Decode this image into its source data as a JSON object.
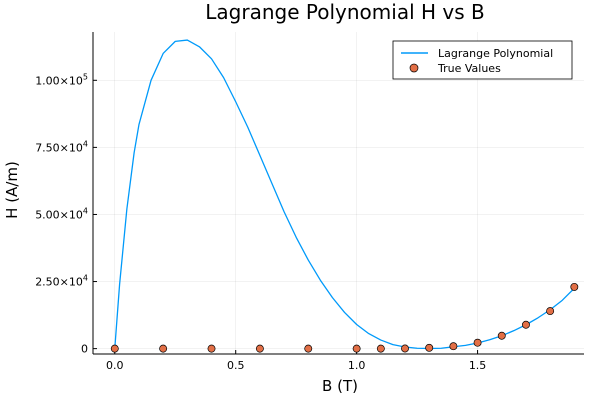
{
  "chart_data": {
    "type": "line",
    "title": "Lagrange Polynomial H vs B",
    "xlabel": "B (T)",
    "ylabel": "H (A/m)",
    "xlim": [
      -0.09,
      1.94
    ],
    "ylim": [
      -2000,
      118000
    ],
    "x_ticks": [
      {
        "value": 0.0,
        "label": "0.0"
      },
      {
        "value": 0.5,
        "label": "0.5"
      },
      {
        "value": 1.0,
        "label": "1.0"
      },
      {
        "value": 1.5,
        "label": "1.5"
      }
    ],
    "y_ticks": [
      {
        "value": 0,
        "mantissa": "0",
        "exponent": ""
      },
      {
        "value": 25000,
        "mantissa": "2.50×10",
        "exponent": "4"
      },
      {
        "value": 50000,
        "mantissa": "5.00×10",
        "exponent": "4"
      },
      {
        "value": 75000,
        "mantissa": "7.50×10",
        "exponent": "4"
      },
      {
        "value": 100000,
        "mantissa": "1.00×10",
        "exponent": "5"
      }
    ],
    "grid": true,
    "legend_position": "top-right",
    "series": [
      {
        "name": "Lagrange Polynomial",
        "kind": "line",
        "color": "#009AFA",
        "x": [
          0.0,
          0.02,
          0.05,
          0.08,
          0.1,
          0.15,
          0.2,
          0.25,
          0.3,
          0.35,
          0.4,
          0.45,
          0.5,
          0.55,
          0.6,
          0.65,
          0.7,
          0.75,
          0.8,
          0.85,
          0.9,
          0.95,
          1.0,
          1.05,
          1.1,
          1.15,
          1.2,
          1.25,
          1.3,
          1.35,
          1.4,
          1.45,
          1.5,
          1.55,
          1.6,
          1.65,
          1.7,
          1.75,
          1.8,
          1.85,
          1.9
        ],
        "y": [
          0,
          24000,
          52000,
          73000,
          83500,
          100000,
          110000,
          114500,
          115000,
          112500,
          108000,
          101000,
          92000,
          82500,
          72000,
          61500,
          51000,
          41500,
          33000,
          25500,
          19000,
          13500,
          9000,
          5600,
          3200,
          1500,
          600,
          150,
          50,
          150,
          700,
          1200,
          2100,
          3300,
          4800,
          6700,
          8900,
          11500,
          14500,
          18000,
          22500
        ]
      },
      {
        "name": "True Values",
        "kind": "scatter",
        "color": "#E26F46",
        "x": [
          0.0,
          0.2,
          0.4,
          0.6,
          0.8,
          1.0,
          1.1,
          1.2,
          1.3,
          1.4,
          1.5,
          1.6,
          1.7,
          1.8,
          1.9
        ],
        "y": [
          0,
          0,
          0,
          0,
          0,
          0,
          0,
          50,
          300,
          900,
          2200,
          4800,
          8900,
          14000,
          23000
        ]
      }
    ]
  }
}
